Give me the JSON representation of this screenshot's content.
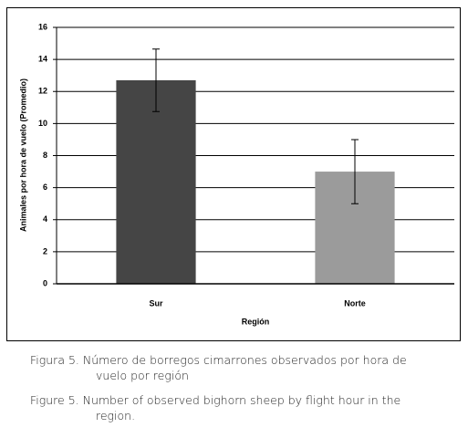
{
  "chart_data": {
    "type": "bar",
    "categories": [
      "Sur",
      "Norte"
    ],
    "values": [
      12.7,
      7.0
    ],
    "errors": [
      1.95,
      2.0
    ],
    "colors": [
      "#454545",
      "#9b9b9b"
    ],
    "x_label": "Región",
    "y_label": "Animales por hora de vuelo (Promedio)",
    "ylim": [
      0,
      16
    ],
    "yticks": [
      0,
      2,
      4,
      6,
      8,
      10,
      12,
      14,
      16
    ],
    "grid": true
  },
  "captions": [
    "Figura 5. Número de borregos cimarrones observados por hora de vuelo por región",
    "Figure 5. Number of observed bighorn sheep by flight hour in the region."
  ]
}
